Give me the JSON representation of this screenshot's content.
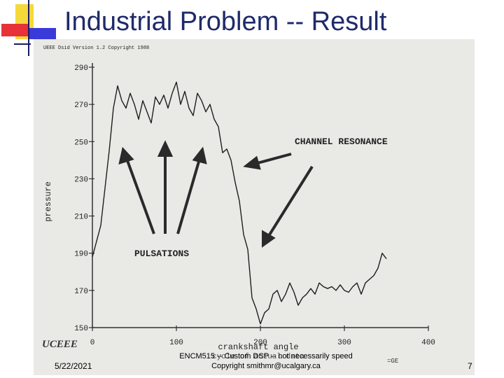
{
  "slide": {
    "title": "Industrial Problem -- Result",
    "date": "5/22/2021",
    "footer_line1": "ENCM515 -- Custom DSP -- not necessarily speed",
    "footer_line2": "Copyright smithmr@ucalgary.ca",
    "page_number": "7"
  },
  "scan_header": "UEEE Dsid Version 1.2 Copyright 1988",
  "scan_logo": "UCEEE",
  "colors": {
    "title": "#1f2a6b",
    "scan_bg": "#e9e9e6",
    "ink": "#222222"
  },
  "chart_data": {
    "type": "line",
    "ylabel": "pressure",
    "xlabel": "crankshaft angle",
    "xlabel2": "cycle of actual data",
    "xlim": [
      0,
      400
    ],
    "ylim": [
      150,
      290
    ],
    "x_ticks": [
      "0",
      "100",
      "200",
      "300",
      "400"
    ],
    "y_ticks": [
      "150",
      "170",
      "190",
      "210",
      "230",
      "250",
      "270",
      "290"
    ],
    "annotations": [
      "CHANNEL RESONANCE",
      "PULSATIONS"
    ],
    "series": [
      {
        "x": [
          0,
          10,
          20,
          25,
          30,
          35,
          40,
          45,
          50,
          55,
          60,
          65,
          70,
          75,
          80,
          85,
          90,
          95,
          100,
          105,
          110,
          115,
          120,
          125,
          130,
          135,
          140,
          145,
          150,
          155,
          160,
          165,
          170,
          175,
          180,
          185,
          190,
          195,
          200,
          205,
          210,
          215,
          220,
          225,
          230,
          235,
          240,
          245,
          250,
          255,
          260,
          265,
          270,
          275,
          280,
          285,
          290,
          295,
          300,
          305,
          310,
          315,
          320,
          325,
          330,
          335,
          340,
          345,
          350
        ],
        "y": [
          188,
          205,
          245,
          268,
          280,
          272,
          268,
          276,
          270,
          262,
          272,
          266,
          260,
          274,
          270,
          275,
          268,
          276,
          282,
          270,
          277,
          268,
          264,
          276,
          272,
          266,
          270,
          262,
          258,
          244,
          246,
          240,
          228,
          218,
          200,
          192,
          166,
          160,
          152,
          158,
          160,
          168,
          170,
          164,
          168,
          174,
          169,
          162,
          166,
          168,
          171,
          168,
          174,
          172,
          171,
          172,
          170,
          173,
          170,
          169,
          172,
          174,
          168,
          174,
          176,
          178,
          182,
          190,
          187
        ]
      }
    ]
  }
}
